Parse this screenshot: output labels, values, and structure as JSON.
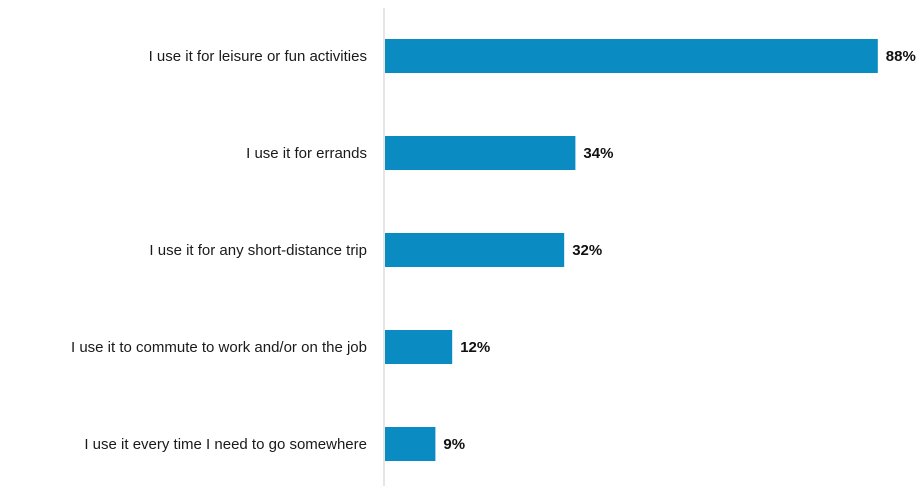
{
  "chart_data": {
    "type": "bar",
    "orientation": "horizontal",
    "categories": [
      "I use it for leisure or fun activities",
      "I use it for errands",
      "I use it for any short-distance trip",
      "I use it to commute to work and/or on the job",
      "I use it every time I need to go somewhere"
    ],
    "values": [
      88,
      34,
      32,
      12,
      9
    ],
    "value_labels": [
      "88%",
      "34%",
      "32%",
      "12%",
      "9%"
    ],
    "unit": "%",
    "xlim": [
      0,
      100
    ],
    "grid": false,
    "legend": "none",
    "colors": {
      "bar": "#0a8cc2",
      "axis": "#cccccc"
    }
  }
}
